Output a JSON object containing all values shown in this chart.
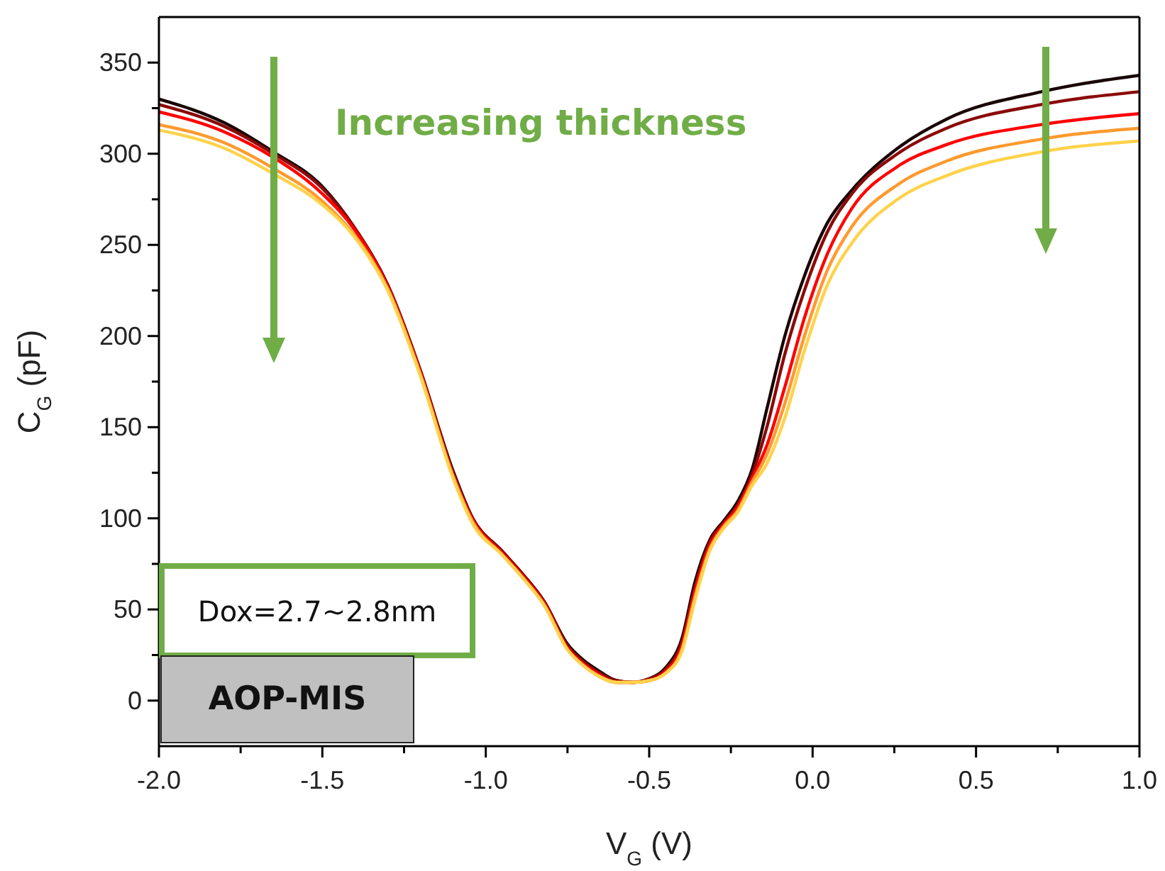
{
  "chart_data": {
    "type": "line",
    "xlabel": "V$_{G}$ (V)",
    "ylabel": "C$_{G}$ (pF)",
    "annotations": [
      "Increasing thickness",
      "Dox=2.7~2.8nm",
      "AOP-MIS"
    ],
    "x": [
      -2.0,
      -1.8,
      -1.65,
      -1.5,
      -1.4,
      -1.3,
      -1.2,
      -1.1,
      -1.04,
      -0.95,
      -0.89,
      -0.82,
      -0.75,
      -0.7,
      -0.66,
      -0.6,
      -0.55,
      -0.5,
      -0.45,
      -0.4,
      -0.36,
      -0.315,
      -0.27,
      -0.23,
      -0.185,
      -0.14,
      -0.085,
      -0.025,
      0.045,
      0.12,
      0.26,
      0.41,
      0.7,
      1.0
    ],
    "series": [
      {
        "color": "#1a0505",
        "values": [
          330,
          317,
          301,
          282,
          259,
          228,
          181,
          126,
          100,
          82,
          70,
          54,
          31,
          22,
          17,
          11,
          10,
          12,
          18,
          34,
          65,
          88,
          99,
          109,
          127,
          160,
          200,
          233,
          262,
          280,
          303,
          319,
          334,
          343
        ]
      },
      {
        "color": "#8b0a0a",
        "values": [
          327,
          315,
          300,
          281,
          259,
          228,
          181,
          125,
          100,
          82,
          70,
          54,
          30,
          21,
          16,
          11,
          10,
          12,
          17,
          32,
          62,
          87,
          98,
          107,
          124,
          150,
          190,
          225,
          257,
          278,
          300,
          314,
          327,
          334
        ]
      },
      {
        "color": "#ff0000",
        "values": [
          323,
          312,
          298,
          278,
          258,
          227,
          180,
          124,
          99,
          81,
          69,
          53,
          29,
          20,
          15,
          10,
          10,
          11,
          16,
          30,
          60,
          85,
          97,
          106,
          122,
          140,
          172,
          210,
          245,
          270,
          293,
          305,
          316,
          322
        ]
      },
      {
        "color": "#ff9a2e",
        "values": [
          316,
          306,
          292,
          274,
          255,
          226,
          179,
          123,
          98,
          80,
          68,
          52,
          28,
          19,
          14,
          10,
          10,
          11,
          15,
          28,
          57,
          83,
          96,
          104,
          120,
          135,
          163,
          200,
          236,
          260,
          283,
          296,
          308,
          314
        ]
      },
      {
        "color": "#ffd24a",
        "values": [
          313,
          303,
          289,
          272,
          254,
          225,
          178,
          122,
          97,
          80,
          68,
          52,
          28,
          19,
          14,
          10,
          10,
          11,
          15,
          27,
          55,
          82,
          95,
          103,
          118,
          130,
          155,
          192,
          228,
          251,
          275,
          288,
          301,
          307
        ]
      }
    ],
    "xlim": [
      -2.0,
      1.0
    ],
    "xticks": [
      {
        "value": -2.0,
        "label": "-2.0"
      },
      {
        "value": -1.75,
        "label": null
      },
      {
        "value": -1.5,
        "label": "-1.5"
      },
      {
        "value": -1.25,
        "label": null
      },
      {
        "value": -1.0,
        "label": "-1.0"
      },
      {
        "value": -0.75,
        "label": null
      },
      {
        "value": -0.5,
        "label": "-0.5"
      },
      {
        "value": -0.25,
        "label": null
      },
      {
        "value": 0,
        "label": "0.0"
      },
      {
        "value": 0.25,
        "label": null
      },
      {
        "value": 0.5,
        "label": "0.5"
      },
      {
        "value": 0.75,
        "label": null
      },
      {
        "value": 1.0,
        "label": "1.0"
      }
    ],
    "ylim": [
      -25,
      375
    ],
    "yticks": [
      0,
      {
        "value": 25,
        "label": null
      },
      50,
      {
        "value": 75,
        "label": null
      },
      100,
      {
        "value": 125,
        "label": null
      },
      150,
      {
        "value": 175,
        "label": null
      },
      200,
      {
        "value": 225,
        "label": null
      },
      250,
      {
        "value": 275,
        "label": null
      },
      300,
      {
        "value": 325,
        "label": null
      },
      350
    ]
  }
}
